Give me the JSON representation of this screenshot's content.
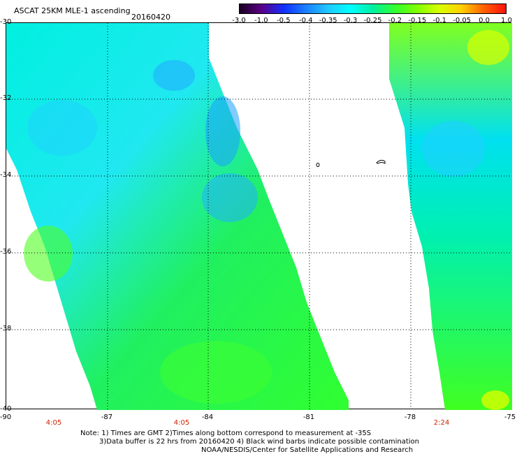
{
  "header": {
    "title": "ASCAT 25KM MLE-1 ascending",
    "date": "20160420"
  },
  "colorbar": {
    "labels": [
      "-3.0",
      "-1.0",
      "-0.5",
      "-0.4",
      "-0.35",
      "-0.3",
      "-0.25",
      "-0.2",
      "-0.15",
      "-0.1",
      "-0.05",
      "0.0",
      "1.0"
    ],
    "colors": [
      "#1a0020",
      "#5a0088",
      "#1030ff",
      "#1a80ff",
      "#20c8ff",
      "#00ffff",
      "#00f0a0",
      "#30ff30",
      "#80ff00",
      "#d8ff00",
      "#ffd000",
      "#ff6000",
      "#ff1010"
    ]
  },
  "map": {
    "lat_labels": [
      "-30",
      "-32",
      "-34",
      "-36",
      "-38",
      "-40"
    ],
    "lon_labels": [
      "-90",
      "-87",
      "-84",
      "-81",
      "-78",
      "-75"
    ],
    "lat_range": [
      -40,
      -30
    ],
    "lon_range": [
      -90,
      -75
    ],
    "gridlines": "dotted"
  },
  "times": [
    "4:05",
    "4:05",
    "2:24"
  ],
  "notes": {
    "line1": "Note: 1) Times are GMT 2)Times along bottom correspond to measurement at -35S",
    "line2": "3)Data buffer is 22 hrs from 20160420 4) Black wind barbs indicate possible contamination",
    "line3": "NOAA/NESDIS/Center for Satellite Applications and Research"
  }
}
